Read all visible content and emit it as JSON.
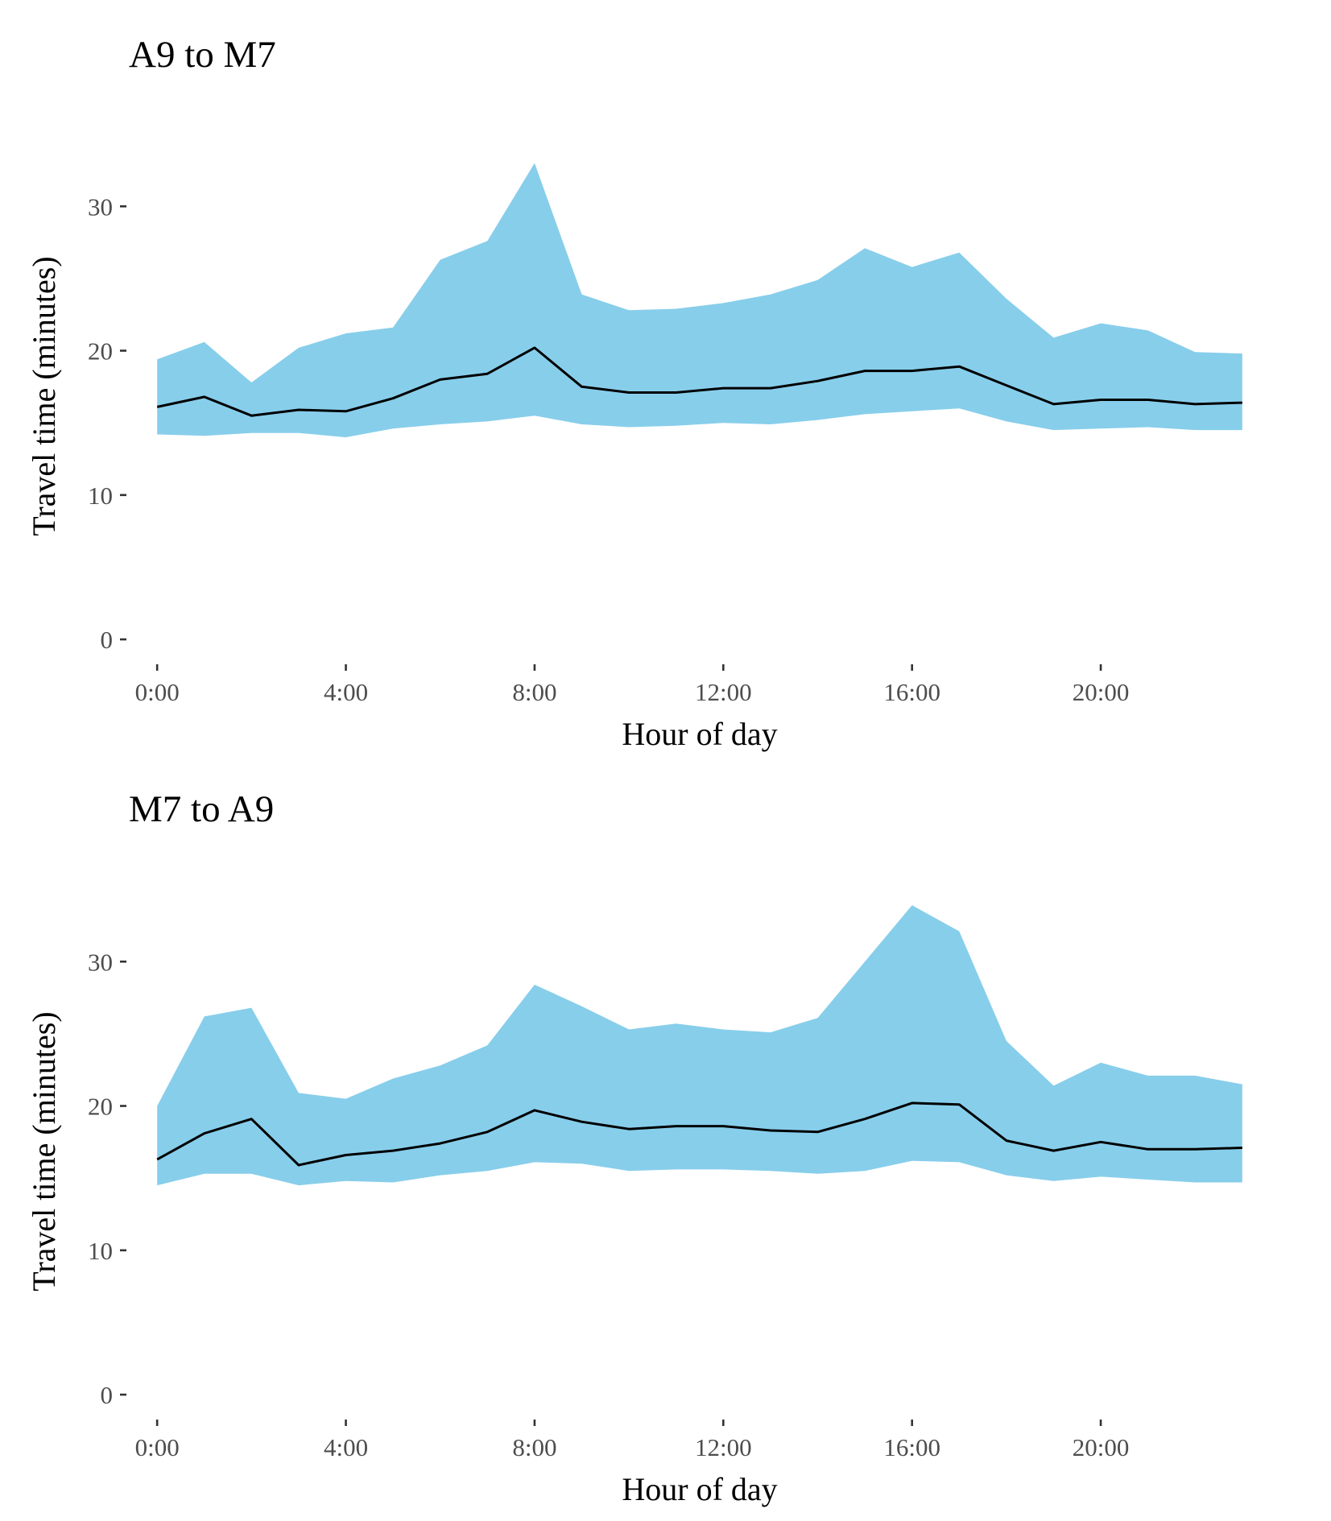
{
  "colors": {
    "band": "#87CEEB",
    "median": "#000000",
    "tick_text": "#4d4d4d",
    "background": "#ffffff"
  },
  "chart_data": [
    {
      "type": "area",
      "title": "A9 to M7",
      "xlabel": "Hour of day",
      "ylabel": "Travel time (minutes)",
      "x": [
        0,
        1,
        2,
        3,
        4,
        5,
        6,
        7,
        8,
        9,
        10,
        11,
        12,
        13,
        14,
        15,
        16,
        17,
        18,
        19,
        20,
        21,
        22,
        23
      ],
      "xticks": [
        0,
        4,
        8,
        12,
        16,
        20
      ],
      "xtick_labels": [
        "0:00",
        "4:00",
        "8:00",
        "12:00",
        "16:00",
        "20:00"
      ],
      "yticks": [
        0,
        10,
        20,
        30
      ],
      "ytick_labels": [
        "0",
        "10",
        "20",
        "30"
      ],
      "xlim": [
        -0.6,
        23.6
      ],
      "ylim": [
        -1,
        34.7
      ],
      "grid": false,
      "legend": "none",
      "series": [
        {
          "role": "median",
          "values": [
            16.1,
            16.8,
            15.5,
            15.9,
            15.8,
            16.7,
            18.0,
            18.4,
            20.2,
            17.5,
            17.1,
            17.1,
            17.4,
            17.4,
            17.9,
            18.6,
            18.6,
            18.9,
            17.6,
            16.3,
            16.6,
            16.6,
            16.3,
            16.4
          ]
        },
        {
          "role": "band_upper",
          "values": [
            19.4,
            20.6,
            17.8,
            20.2,
            21.2,
            21.6,
            26.3,
            27.6,
            33.0,
            23.9,
            22.8,
            22.9,
            23.3,
            23.9,
            24.9,
            27.1,
            25.8,
            26.8,
            23.6,
            20.9,
            21.9,
            21.4,
            19.9,
            19.8
          ]
        },
        {
          "role": "band_lower",
          "values": [
            14.2,
            14.1,
            14.3,
            14.3,
            14.0,
            14.6,
            14.9,
            15.1,
            15.5,
            14.9,
            14.7,
            14.8,
            15.0,
            14.9,
            15.2,
            15.6,
            15.8,
            16.0,
            15.1,
            14.5,
            14.6,
            14.7,
            14.5,
            14.5
          ]
        }
      ]
    },
    {
      "type": "area",
      "title": "M7 to A9",
      "xlabel": "Hour of day",
      "ylabel": "Travel time (minutes)",
      "x": [
        0,
        1,
        2,
        3,
        4,
        5,
        6,
        7,
        8,
        9,
        10,
        11,
        12,
        13,
        14,
        15,
        16,
        17,
        18,
        19,
        20,
        21,
        22,
        23
      ],
      "xticks": [
        0,
        4,
        8,
        12,
        16,
        20
      ],
      "xtick_labels": [
        "0:00",
        "4:00",
        "8:00",
        "12:00",
        "16:00",
        "20:00"
      ],
      "yticks": [
        0,
        10,
        20,
        30
      ],
      "ytick_labels": [
        "0",
        "10",
        "20",
        "30"
      ],
      "xlim": [
        -0.6,
        23.6
      ],
      "ylim": [
        -1,
        34.7
      ],
      "grid": false,
      "legend": "none",
      "series": [
        {
          "role": "median",
          "values": [
            16.3,
            18.1,
            19.1,
            15.9,
            16.6,
            16.9,
            17.4,
            18.2,
            19.7,
            18.9,
            18.4,
            18.6,
            18.6,
            18.3,
            18.2,
            19.1,
            20.2,
            20.1,
            17.6,
            16.9,
            17.5,
            17.0,
            17.0,
            17.1
          ]
        },
        {
          "role": "band_upper",
          "values": [
            20.0,
            26.2,
            26.8,
            20.9,
            20.5,
            21.9,
            22.8,
            24.2,
            28.4,
            26.9,
            25.3,
            25.7,
            25.3,
            25.1,
            26.1,
            30.0,
            33.9,
            32.1,
            24.5,
            21.4,
            23.0,
            22.1,
            22.1,
            21.5
          ]
        },
        {
          "role": "band_lower",
          "values": [
            14.5,
            15.3,
            15.3,
            14.5,
            14.8,
            14.7,
            15.2,
            15.5,
            16.1,
            16.0,
            15.5,
            15.6,
            15.6,
            15.5,
            15.3,
            15.5,
            16.2,
            16.1,
            15.2,
            14.8,
            15.1,
            14.9,
            14.7,
            14.7
          ]
        }
      ]
    }
  ]
}
